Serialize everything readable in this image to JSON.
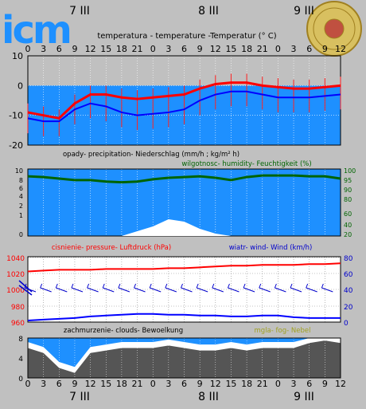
{
  "header": {
    "logo_text": "icm",
    "days": [
      "7 III",
      "8 III",
      "9 III"
    ],
    "hour_ticks": [
      "0",
      "3",
      "6",
      "9",
      "12",
      "15",
      "18",
      "21",
      "0",
      "3",
      "6",
      "9",
      "12",
      "15",
      "18",
      "21",
      "0",
      "3",
      "6",
      "9",
      "12"
    ],
    "seal": "university-seal-icon"
  },
  "colors": {
    "background": "#c0c0c0",
    "plot_blue": "#1e90ff",
    "light_blue": "#87ceeb",
    "temperature": "#ff0000",
    "dewpoint": "#0000ff",
    "humidity": "#006400",
    "clouds": "#555555",
    "fog_label": "#a0a020"
  },
  "chart_data": [
    {
      "type": "line",
      "id": "temperature",
      "title": "temperatura - temperature -Temperatur (° C)",
      "x": [
        0,
        3,
        6,
        9,
        12,
        15,
        18,
        21,
        24,
        27,
        30,
        33,
        36,
        39,
        42,
        45,
        48,
        51,
        54,
        57,
        60
      ],
      "ylim": [
        -20,
        10
      ],
      "yticks": [
        "10",
        "0",
        "-10",
        "-20"
      ],
      "series": [
        {
          "values": [
            -9,
            -10,
            -11,
            -6,
            -3,
            -3,
            -4,
            -4.5,
            -4,
            -3.5,
            -3,
            -1,
            0.5,
            1,
            1,
            0,
            -0.5,
            -1,
            -1,
            -0.5,
            0
          ]
        },
        {
          "values": [
            -11,
            -12,
            -12,
            -8,
            -6,
            -7,
            -9,
            -10,
            -9.5,
            -9,
            -8,
            -5,
            -3,
            -2,
            -2,
            -3,
            -4,
            -4,
            -4,
            -3.5,
            -3
          ]
        }
      ]
    },
    {
      "type": "area",
      "id": "precipitation",
      "title": "opady- precipitation- Niederschlag (mm/h ; kg/m² h)",
      "x": [
        0,
        3,
        6,
        9,
        12,
        15,
        18,
        21,
        24,
        27,
        30,
        33,
        36,
        39,
        42,
        45,
        48,
        51,
        54,
        57,
        60
      ],
      "ylim": [
        0,
        10
      ],
      "yticks": [
        "10",
        "8",
        "6",
        "4",
        "2",
        "1",
        "0"
      ],
      "series": [
        {
          "values": [
            0,
            0,
            0,
            0,
            0,
            0,
            0,
            0.1,
            0.2,
            0.35,
            0.3,
            0.15,
            0.05,
            0,
            0,
            0,
            0,
            0,
            0,
            0,
            0
          ]
        }
      ]
    },
    {
      "type": "line",
      "id": "humidity",
      "title": "wilgotnosc- humidity- Feuchtigkeit (%)",
      "x": [
        0,
        3,
        6,
        9,
        12,
        15,
        18,
        21,
        24,
        27,
        30,
        33,
        36,
        39,
        42,
        45,
        48,
        51,
        54,
        57,
        60
      ],
      "ylim": [
        20,
        100
      ],
      "yticks": [
        "100",
        "95",
        "90",
        "80",
        "60",
        "40",
        "20"
      ],
      "series": [
        {
          "values": [
            95,
            94,
            92,
            90,
            90,
            88,
            87,
            88,
            91,
            93,
            94,
            95,
            93,
            90,
            94,
            96,
            96,
            96,
            95,
            95,
            92
          ]
        }
      ]
    },
    {
      "type": "line",
      "id": "pressure",
      "title": "cisnienie- pressure- Luftdruck (hPa)",
      "x": [
        0,
        3,
        6,
        9,
        12,
        15,
        18,
        21,
        24,
        27,
        30,
        33,
        36,
        39,
        42,
        45,
        48,
        51,
        54,
        57,
        60
      ],
      "ylim": [
        960,
        1040
      ],
      "yticks": [
        "1040",
        "1020",
        "1000",
        "980",
        "960"
      ],
      "series": [
        {
          "values": [
            1022,
            1023,
            1024,
            1024,
            1024,
            1025,
            1025,
            1025,
            1025,
            1026,
            1026,
            1027,
            1028,
            1029,
            1029,
            1030,
            1030,
            1030,
            1031,
            1031,
            1032
          ]
        }
      ]
    },
    {
      "type": "line",
      "id": "wind",
      "title": "wiatr- wind- Wind (km/h)",
      "x": [
        0,
        3,
        6,
        9,
        12,
        15,
        18,
        21,
        24,
        27,
        30,
        33,
        36,
        39,
        42,
        45,
        48,
        51,
        54,
        57,
        60
      ],
      "ylim": [
        0,
        80
      ],
      "yticks": [
        "80",
        "60",
        "40",
        "20",
        "0"
      ],
      "series": [
        {
          "values": [
            2,
            3,
            4,
            5,
            7,
            8,
            9,
            10,
            10,
            9,
            9,
            8,
            8,
            7,
            7,
            8,
            8,
            6,
            5,
            5,
            5
          ]
        }
      ]
    },
    {
      "type": "area",
      "id": "clouds",
      "title": "zachmurzenie- clouds- Bewoelkung",
      "legend_extra": "mgla- fog- Nebel",
      "x": [
        0,
        3,
        6,
        9,
        12,
        15,
        18,
        21,
        24,
        27,
        30,
        33,
        36,
        39,
        42,
        45,
        48,
        51,
        54,
        57,
        60
      ],
      "ylim": [
        0,
        8
      ],
      "yticks": [
        "8",
        "4",
        "0"
      ],
      "series": [
        {
          "values": [
            6,
            5,
            2,
            1,
            5,
            5.5,
            6,
            6,
            6,
            6.5,
            6,
            5.5,
            5.5,
            6,
            5.5,
            6,
            6,
            6,
            7,
            7.5,
            7
          ]
        }
      ]
    }
  ]
}
